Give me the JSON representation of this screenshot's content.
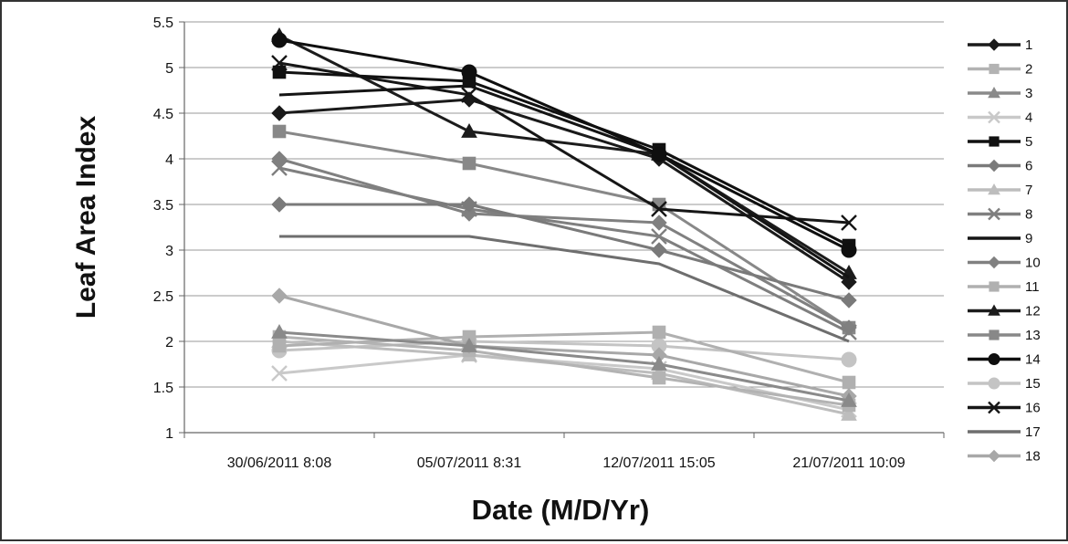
{
  "chart_data": {
    "type": "line",
    "title": "",
    "xlabel": "Date (M/D/Yr)",
    "ylabel": "Leaf Area Index",
    "categories": [
      "30/06/2011 8:08",
      "05/07/2011 8:31",
      "12/07/2011 15:05",
      "21/07/2011 10:09"
    ],
    "ylim": [
      1,
      5.5
    ],
    "yticks": [
      "1",
      "1.5",
      "2",
      "2.5",
      "3",
      "3.5",
      "4",
      "4.5",
      "5",
      "5.5"
    ],
    "grid": true,
    "legend_position": "right",
    "series": [
      {
        "name": "1",
        "values": [
          4.5,
          4.65,
          4.0,
          2.65
        ],
        "color": "#1a1a1a",
        "marker": "diamond",
        "width": 3
      },
      {
        "name": "2",
        "values": [
          2.05,
          1.9,
          1.6,
          1.3
        ],
        "color": "#b3b3b3",
        "marker": "square",
        "width": 3
      },
      {
        "name": "3",
        "values": [
          2.1,
          1.95,
          1.75,
          1.35
        ],
        "color": "#8a8a8a",
        "marker": "triangle",
        "width": 3
      },
      {
        "name": "4",
        "values": [
          1.65,
          1.85,
          1.7,
          1.25
        ],
        "color": "#c9c9c9",
        "marker": "x",
        "width": 3
      },
      {
        "name": "5",
        "values": [
          4.95,
          4.85,
          4.1,
          3.05
        ],
        "color": "#111111",
        "marker": "square",
        "width": 3
      },
      {
        "name": "6",
        "values": [
          3.5,
          3.5,
          3.0,
          2.45
        ],
        "color": "#7a7a7a",
        "marker": "diamond",
        "width": 3
      },
      {
        "name": "7",
        "values": [
          2.0,
          1.85,
          1.65,
          1.2
        ],
        "color": "#bdbdbd",
        "marker": "triangle",
        "width": 3
      },
      {
        "name": "8",
        "values": [
          3.9,
          3.45,
          3.15,
          2.1
        ],
        "color": "#7f7f7f",
        "marker": "x",
        "width": 3
      },
      {
        "name": "9",
        "values": [
          4.7,
          4.8,
          4.05,
          2.7
        ],
        "color": "#141414",
        "marker": "none",
        "width": 3
      },
      {
        "name": "10",
        "values": [
          4.0,
          3.4,
          3.3,
          2.15
        ],
        "color": "#808080",
        "marker": "diamond",
        "width": 3
      },
      {
        "name": "11",
        "values": [
          1.95,
          2.05,
          2.1,
          1.55
        ],
        "color": "#b0b0b0",
        "marker": "square",
        "width": 3
      },
      {
        "name": "12",
        "values": [
          5.35,
          4.3,
          4.05,
          2.75
        ],
        "color": "#1c1c1c",
        "marker": "triangle",
        "width": 3
      },
      {
        "name": "13",
        "values": [
          4.3,
          3.95,
          3.5,
          2.15
        ],
        "color": "#888888",
        "marker": "square",
        "width": 3
      },
      {
        "name": "14",
        "values": [
          5.3,
          4.95,
          4.05,
          3.0
        ],
        "color": "#0f0f0f",
        "marker": "circle",
        "width": 3
      },
      {
        "name": "15",
        "values": [
          1.9,
          2.0,
          1.95,
          1.8
        ],
        "color": "#c4c4c4",
        "marker": "circle",
        "width": 3
      },
      {
        "name": "16",
        "values": [
          5.05,
          4.7,
          3.45,
          3.3
        ],
        "color": "#161616",
        "marker": "x",
        "width": 3
      },
      {
        "name": "17",
        "values": [
          3.15,
          3.15,
          2.85,
          2.0
        ],
        "color": "#6e6e6e",
        "marker": "none",
        "width": 3
      },
      {
        "name": "18",
        "values": [
          2.5,
          1.95,
          1.85,
          1.4
        ],
        "color": "#a8a8a8",
        "marker": "diamond",
        "width": 3
      }
    ]
  }
}
